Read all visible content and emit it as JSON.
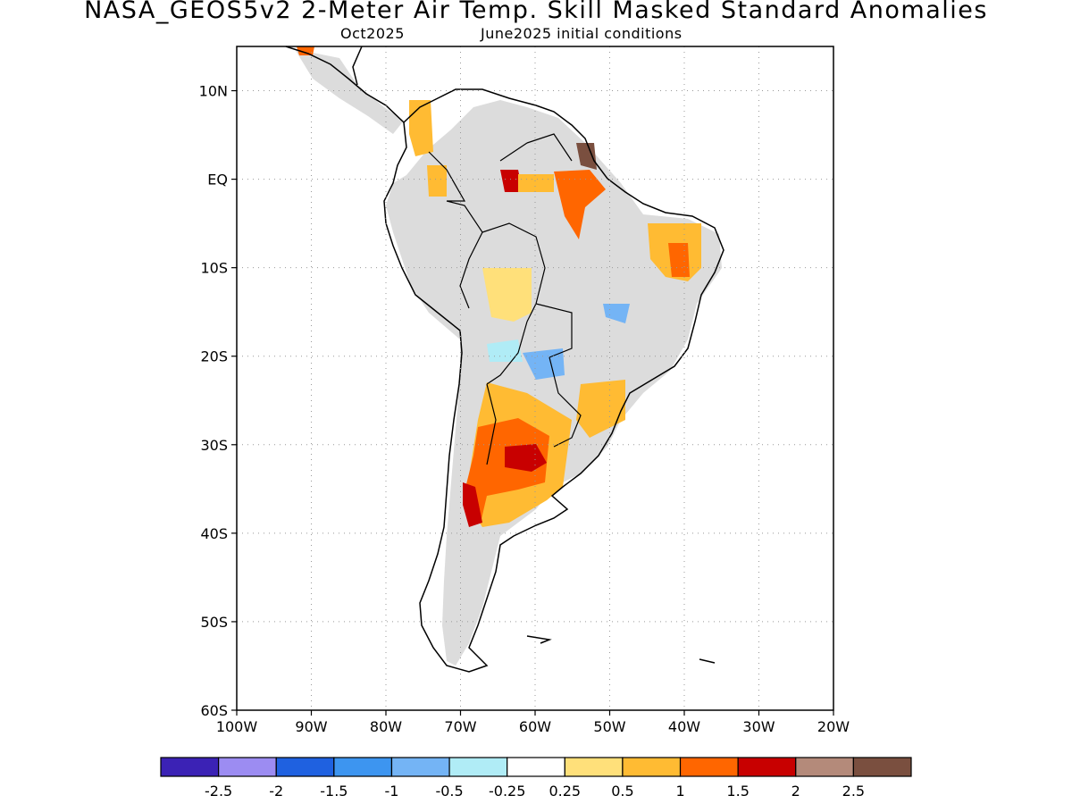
{
  "header": {
    "title": "NASA_GEOS5v2 2-Meter Air Temp. Skill Masked Standard Anomalies",
    "month": "Oct2025",
    "init": "June2025 initial conditions"
  },
  "map": {
    "lat_labels": [
      "10N",
      "EQ",
      "10S",
      "20S",
      "30S",
      "40S",
      "50S",
      "60S"
    ],
    "lon_labels": [
      "100W",
      "90W",
      "80W",
      "70W",
      "60W",
      "50W",
      "40W",
      "30W",
      "20W"
    ],
    "lon_range": [
      -100,
      -20
    ],
    "lat_range": [
      -60,
      15
    ],
    "grid": true,
    "mask_color": "#dcdcdc",
    "coast_color": "#000000"
  },
  "colorbar": {
    "colors": [
      "#3b22b5",
      "#9c8cf2",
      "#1f61e0",
      "#3d95f0",
      "#74b4f5",
      "#b0ecf6",
      "#ffffff",
      "#ffe07a",
      "#ffbb33",
      "#ff6600",
      "#c80000",
      "#b48a7a",
      "#7a4f3f"
    ],
    "labels": [
      "-2.5",
      "-2",
      "-1.5",
      "-1",
      "-0.5",
      "-0.25",
      "0.25",
      "0.5",
      "1",
      "1.5",
      "2",
      "2.5"
    ]
  }
}
